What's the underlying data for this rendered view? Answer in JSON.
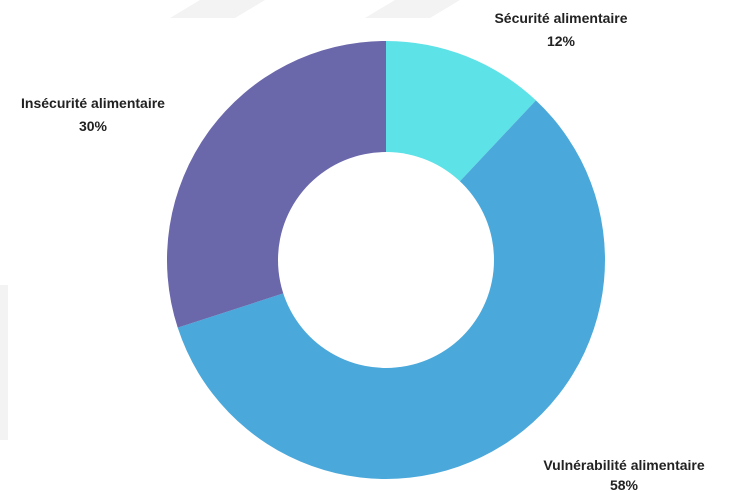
{
  "chart_data": {
    "type": "pie",
    "donut": true,
    "start_angle_deg": 0,
    "direction": "clockwise",
    "slices": [
      {
        "label": "Sécurité alimentaire",
        "value": 12,
        "value_label": "12%",
        "color": "#5de2e7"
      },
      {
        "label": "Vulnérabilité alimentaire",
        "value": 58,
        "value_label": "58%",
        "color": "#4aa8db"
      },
      {
        "label": "Insécurité alimentaire",
        "value": 30,
        "value_label": "30%",
        "color": "#6a67ab"
      }
    ],
    "legend": "none"
  }
}
